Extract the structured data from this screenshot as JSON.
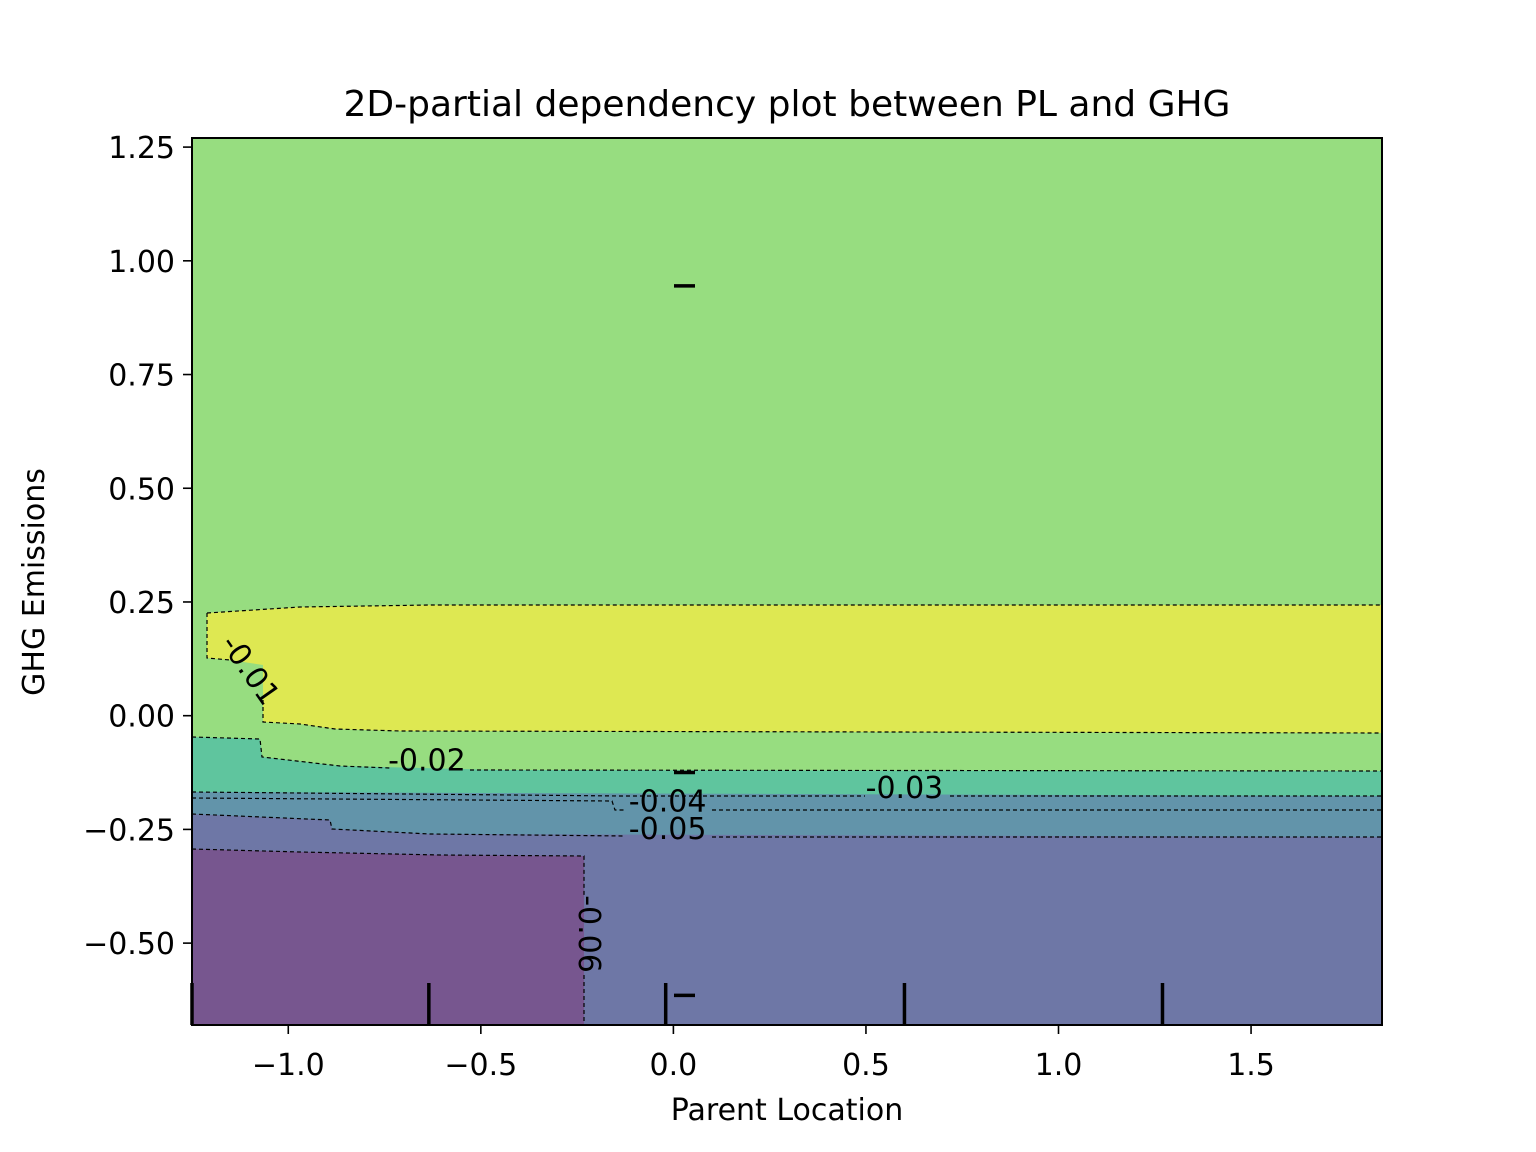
{
  "chart_data": {
    "type": "contour",
    "title": "2D-partial dependency plot between PL and GHG",
    "xlabel": "Parent Location",
    "ylabel": "GHG Emissions",
    "xlim": [
      -1.25,
      1.84
    ],
    "ylim": [
      -0.68,
      1.27
    ],
    "xticks": [
      -1.0,
      -0.5,
      0.0,
      0.5,
      1.0,
      1.5
    ],
    "xtick_labels": [
      "−1.0",
      "−0.5",
      "0.0",
      "0.5",
      "1.0",
      "1.5"
    ],
    "yticks": [
      1.25,
      1.0,
      0.75,
      0.5,
      0.25,
      0.0,
      -0.25,
      -0.5
    ],
    "ytick_labels": [
      "1.25",
      "1.00",
      "0.75",
      "0.50",
      "0.25",
      "0.00",
      "−0.25",
      "−0.50"
    ],
    "levels": [
      {
        "value": -0.06,
        "label": "-0.06",
        "color": "#77568f"
      },
      {
        "value": -0.05,
        "label": "-0.05",
        "color": "#6e77a6"
      },
      {
        "value": -0.04,
        "label": "-0.04",
        "color": "#6294aa"
      },
      {
        "value": -0.03,
        "label": "-0.03",
        "color": "#5fc59e"
      },
      {
        "value": -0.02,
        "label": "-0.02",
        "color": "#97dd80"
      },
      {
        "value": -0.01,
        "label": "-0.01",
        "color": "#dee852"
      }
    ],
    "contour_labels": [
      {
        "text": "-0.01",
        "x": -1.1,
        "y": 0.1,
        "rotation": 55
      },
      {
        "text": "-0.02",
        "x": -0.64,
        "y": -0.1,
        "rotation": 0
      },
      {
        "text": "-0.03",
        "x": 0.6,
        "y": -0.16,
        "rotation": 0
      },
      {
        "text": "-0.04",
        "x": -0.015,
        "y": -0.19,
        "rotation": 0
      },
      {
        "text": "-0.05",
        "x": -0.015,
        "y": -0.25,
        "rotation": 0
      },
      {
        "text": "-0.06",
        "x": -0.22,
        "y": -0.48,
        "rotation": 90
      }
    ],
    "x_deciles": [
      -1.25,
      -0.635,
      -0.02,
      0.6,
      1.27
    ],
    "y_deciles": [
      0.945,
      -0.125,
      -0.615
    ]
  }
}
